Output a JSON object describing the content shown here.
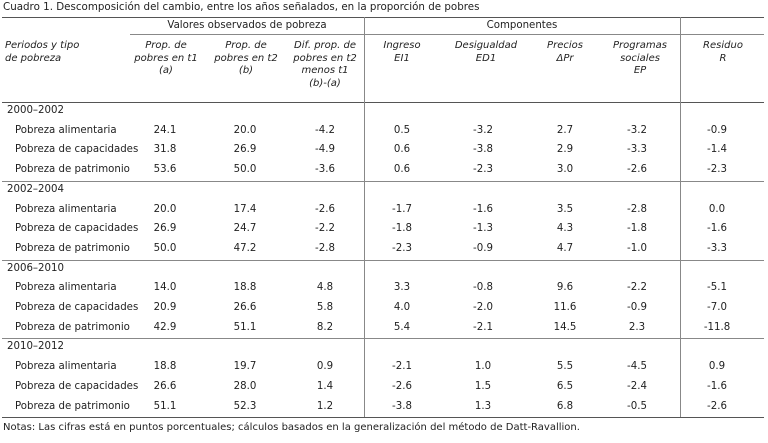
{
  "caption": "Cuadro 1. Descomposición del cambio, entre los años señalados, en la proporción de pobres",
  "group_headers": {
    "observed": "Valores observados de pobreza",
    "components": "Componentes"
  },
  "column_headers": {
    "periodo": "Periodos y tipo\nde pobreza",
    "t1": "Prop. de\npobres en t1\n(a)",
    "t2": "Prop. de\npobres en t2\n(b)",
    "dif": "Dif. prop. de\npobres en t2\nmenos t1\n(b)-(a)",
    "ingreso": "Ingreso\nEI1",
    "desigualdad": "Desigualdad\nED1",
    "precios": "Precios\nΔPr",
    "programas": "Programas\nsociales\nEP",
    "residuo": "Residuo\nR"
  },
  "sections": [
    {
      "period": "2000–2002",
      "rows": [
        {
          "label": "Pobreza alimentaria",
          "t1": "24.1",
          "t2": "20.0",
          "dif": "-4.2",
          "ingreso": "0.5",
          "desigualdad": "-3.2",
          "precios": "2.7",
          "programas": "-3.2",
          "residuo": "-0.9"
        },
        {
          "label": "Pobreza de capacidades",
          "t1": "31.8",
          "t2": "26.9",
          "dif": "-4.9",
          "ingreso": "0.6",
          "desigualdad": "-3.8",
          "precios": "2.9",
          "programas": "-3.3",
          "residuo": "-1.4"
        },
        {
          "label": "Pobreza de patrimonio",
          "t1": "53.6",
          "t2": "50.0",
          "dif": "-3.6",
          "ingreso": "0.6",
          "desigualdad": "-2.3",
          "precios": "3.0",
          "programas": "-2.6",
          "residuo": "-2.3"
        }
      ]
    },
    {
      "period": "2002–2004",
      "rows": [
        {
          "label": "Pobreza alimentaria",
          "t1": "20.0",
          "t2": "17.4",
          "dif": "-2.6",
          "ingreso": "-1.7",
          "desigualdad": "-1.6",
          "precios": "3.5",
          "programas": "-2.8",
          "residuo": "0.0"
        },
        {
          "label": "Pobreza de capacidades",
          "t1": "26.9",
          "t2": "24.7",
          "dif": "-2.2",
          "ingreso": "-1.8",
          "desigualdad": "-1.3",
          "precios": "4.3",
          "programas": "-1.8",
          "residuo": "-1.6"
        },
        {
          "label": "Pobreza de patrimonio",
          "t1": "50.0",
          "t2": "47.2",
          "dif": "-2.8",
          "ingreso": "-2.3",
          "desigualdad": "-0.9",
          "precios": "4.7",
          "programas": "-1.0",
          "residuo": "-3.3"
        }
      ]
    },
    {
      "period": "2006–2010",
      "rows": [
        {
          "label": "Pobreza alimentaria",
          "t1": "14.0",
          "t2": "18.8",
          "dif": "4.8",
          "ingreso": "3.3",
          "desigualdad": "-0.8",
          "precios": "9.6",
          "programas": "-2.2",
          "residuo": "-5.1"
        },
        {
          "label": "Pobreza de capacidades",
          "t1": "20.9",
          "t2": "26.6",
          "dif": "5.8",
          "ingreso": "4.0",
          "desigualdad": "-2.0",
          "precios": "11.6",
          "programas": "-0.9",
          "residuo": "-7.0"
        },
        {
          "label": "Pobreza de patrimonio",
          "t1": "42.9",
          "t2": "51.1",
          "dif": "8.2",
          "ingreso": "5.4",
          "desigualdad": "-2.1",
          "precios": "14.5",
          "programas": "2.3",
          "residuo": "-11.8"
        }
      ]
    },
    {
      "period": "2010–2012",
      "rows": [
        {
          "label": "Pobreza alimentaria",
          "t1": "18.8",
          "t2": "19.7",
          "dif": "0.9",
          "ingreso": "-2.1",
          "desigualdad": "1.0",
          "precios": "5.5",
          "programas": "-4.5",
          "residuo": "0.9"
        },
        {
          "label": "Pobreza de capacidades",
          "t1": "26.6",
          "t2": "28.0",
          "dif": "1.4",
          "ingreso": "-2.6",
          "desigualdad": "1.5",
          "precios": "6.5",
          "programas": "-2.4",
          "residuo": "-1.6"
        },
        {
          "label": "Pobreza de patrimonio",
          "t1": "51.1",
          "t2": "52.3",
          "dif": "1.2",
          "ingreso": "-3.8",
          "desigualdad": "1.3",
          "precios": "6.8",
          "programas": "-0.5",
          "residuo": "-2.6"
        }
      ]
    }
  ],
  "notes": "Notas: Las cifras está en puntos porcentuales; cálculos basados en la generalización del método de Datt-Ravallion."
}
